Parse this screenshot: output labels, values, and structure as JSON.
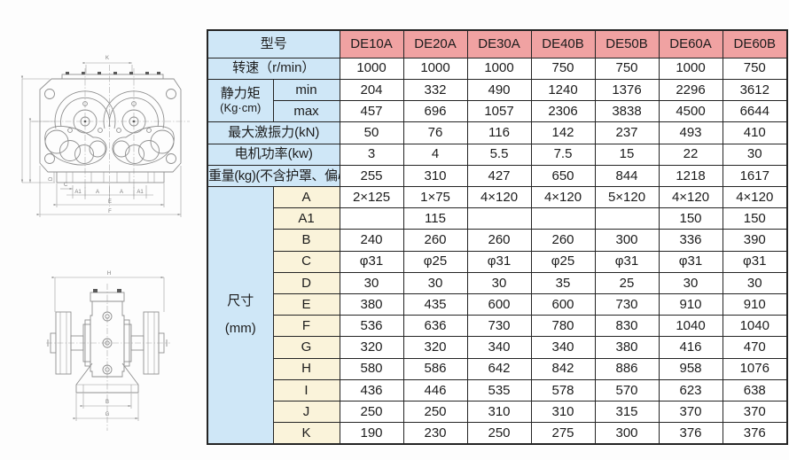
{
  "colors": {
    "header_pink": "#f0a2a2",
    "label_blue": "#cfe7f7",
    "dim_cream": "#faf3da",
    "table_border": "#242424",
    "drawing_line_gray": "#8f8f8f"
  },
  "drawings": {
    "top_view": {
      "description": "top view of twin-shaft vibration exciter",
      "labels": {
        "k": "K",
        "c": "C",
        "d": "D",
        "a1l": "A1",
        "al": "A",
        "ar": "A",
        "a1r": "A1",
        "e": "E",
        "f": "F"
      }
    },
    "side_view": {
      "description": "side view of vibration exciter on base",
      "labels": {
        "h": "H",
        "b": "B",
        "g": "G"
      }
    }
  },
  "table": {
    "rows": [
      {
        "t": "h",
        "label": "型号",
        "values": [
          "DE10A",
          "DE20A",
          "DE30A",
          "DE40B",
          "DE50B",
          "DE60A",
          "DE60B"
        ]
      },
      {
        "t": "f",
        "label": "转速（r/min）",
        "values": [
          "1000",
          "1000",
          "1000",
          "750",
          "750",
          "1000",
          "750"
        ]
      },
      {
        "t": "g",
        "glines": [
          "静力矩",
          "(Kg·cm)"
        ],
        "gspan": 2,
        "gname": "static-moment",
        "gcls": "grp-moment",
        "sub": "min",
        "subcls": "blue",
        "values": [
          "204",
          "332",
          "490",
          "1240",
          "1376",
          "2296",
          "3612"
        ]
      },
      {
        "t": "s",
        "sub": "max",
        "subcls": "blue",
        "values": [
          "457",
          "696",
          "1057",
          "2306",
          "3838",
          "4500",
          "6644"
        ]
      },
      {
        "t": "f",
        "label": "最大激振力(kN)",
        "values": [
          "50",
          "76",
          "116",
          "142",
          "237",
          "493",
          "410"
        ]
      },
      {
        "t": "f",
        "label": "电机功率(kw)",
        "values": [
          "3",
          "4",
          "5.5",
          "7.5",
          "15",
          "22",
          "30"
        ]
      },
      {
        "t": "f",
        "label": "重量(kg)(不含护罩、偏心块)",
        "small": true,
        "values": [
          "255",
          "310",
          "427",
          "650",
          "844",
          "1218",
          "1617"
        ]
      },
      {
        "t": "g",
        "glines": [
          "尺寸",
          "(mm)"
        ],
        "gspan": 12,
        "gname": "dimensions",
        "gcls": "grp-dims",
        "sub": "A",
        "subcls": "cream",
        "values": [
          "2×125",
          "1×75",
          "4×120",
          "4×120",
          "5×120",
          "4×120",
          "4×120"
        ]
      },
      {
        "t": "s",
        "sub": "A1",
        "subcls": "cream",
        "values": [
          "",
          "115",
          "",
          "",
          "",
          "150",
          "150"
        ]
      },
      {
        "t": "s",
        "sub": "B",
        "subcls": "cream",
        "values": [
          "240",
          "260",
          "260",
          "260",
          "300",
          "336",
          "390"
        ]
      },
      {
        "t": "s",
        "sub": "C",
        "subcls": "cream",
        "values": [
          "φ31",
          "φ25",
          "φ31",
          "φ25",
          "φ31",
          "φ31",
          "φ31"
        ]
      },
      {
        "t": "s",
        "sub": "D",
        "subcls": "cream",
        "values": [
          "30",
          "30",
          "30",
          "35",
          "25",
          "30",
          "30"
        ]
      },
      {
        "t": "s",
        "sub": "E",
        "subcls": "cream",
        "values": [
          "380",
          "435",
          "600",
          "600",
          "730",
          "910",
          "910"
        ]
      },
      {
        "t": "s",
        "sub": "F",
        "subcls": "cream",
        "values": [
          "536",
          "636",
          "730",
          "780",
          "830",
          "1040",
          "1040"
        ]
      },
      {
        "t": "s",
        "sub": "G",
        "subcls": "cream",
        "values": [
          "320",
          "320",
          "340",
          "340",
          "380",
          "416",
          "470"
        ]
      },
      {
        "t": "s",
        "sub": "H",
        "subcls": "cream",
        "values": [
          "580",
          "586",
          "642",
          "842",
          "886",
          "958",
          "1076"
        ]
      },
      {
        "t": "s",
        "sub": "I",
        "subcls": "cream",
        "values": [
          "436",
          "446",
          "535",
          "578",
          "570",
          "623",
          "638"
        ]
      },
      {
        "t": "s",
        "sub": "J",
        "subcls": "cream",
        "values": [
          "250",
          "250",
          "310",
          "310",
          "315",
          "370",
          "370"
        ]
      },
      {
        "t": "s",
        "sub": "K",
        "subcls": "cream",
        "values": [
          "190",
          "230",
          "250",
          "275",
          "300",
          "376",
          "376"
        ]
      }
    ]
  }
}
